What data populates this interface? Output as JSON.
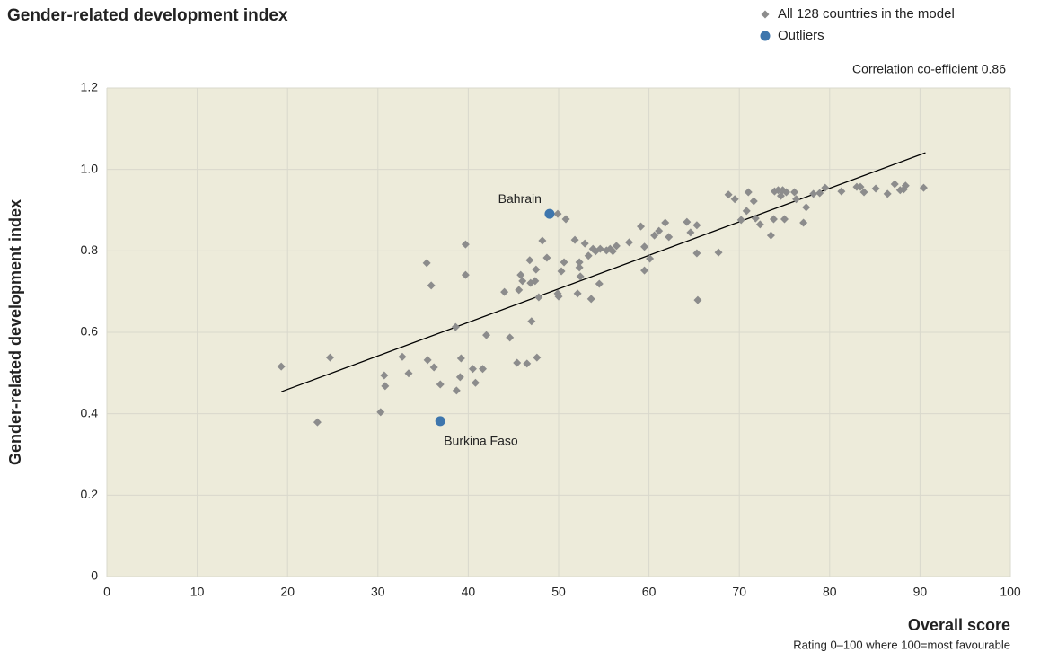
{
  "chart_data": {
    "type": "scatter",
    "title": "Gender-related development index",
    "xlabel": "Overall score",
    "xlabel_note": "Rating 0–100 where 100=most favourable",
    "ylabel": "Gender-related development index",
    "annotation": "Correlation co-efficient 0.86",
    "xlim": [
      0,
      100
    ],
    "ylim": [
      0,
      1.2
    ],
    "xticks": [
      0,
      10,
      20,
      30,
      40,
      50,
      60,
      70,
      80,
      90,
      100
    ],
    "yticks": [
      0,
      0.2,
      0.4,
      0.6,
      0.8,
      {
        "value": 1.0,
        "label": "1.0"
      },
      1.2
    ],
    "grid": true,
    "background": "#edebda",
    "legend": "top-right",
    "series": [
      {
        "name": "All 128 countries in the model",
        "color": "#8c8c8c",
        "marker": "diamond",
        "x": [
          19.3,
          23.3,
          24.7,
          30.3,
          30.7,
          30.8,
          32.7,
          33.4,
          35.4,
          35.9,
          35.5,
          36.2,
          36.9,
          38.6,
          38.7,
          39.1,
          39.2,
          39.7,
          39.7,
          40.5,
          40.8,
          41.6,
          42.0,
          44.0,
          44.6,
          45.4,
          45.6,
          45.8,
          46.0,
          46.5,
          46.8,
          46.9,
          47.0,
          47.4,
          47.5,
          47.6,
          47.8,
          48.2,
          48.7,
          49.9,
          49.9,
          50.0,
          50.3,
          50.6,
          50.8,
          51.8,
          52.1,
          52.3,
          52.4,
          52.3,
          52.9,
          53.3,
          53.6,
          53.8,
          54.1,
          54.5,
          54.6,
          55.3,
          55.7,
          56.0,
          56.4,
          57.8,
          59.1,
          59.5,
          59.5,
          60.1,
          60.6,
          61.1,
          61.8,
          62.2,
          64.2,
          64.6,
          65.3,
          65.3,
          65.4,
          67.7,
          68.8,
          69.5,
          70.2,
          70.8,
          71.0,
          71.6,
          71.8,
          72.3,
          73.5,
          73.8,
          73.9,
          74.3,
          74.6,
          74.8,
          75.0,
          75.2,
          76.1,
          76.3,
          77.1,
          77.4,
          78.2,
          78.9,
          79.5,
          81.3,
          83.0,
          83.4,
          83.8,
          85.1,
          86.4,
          87.2,
          87.8,
          88.4,
          88.2,
          90.4
        ],
        "values": [
          0.516,
          0.379,
          0.538,
          0.404,
          0.494,
          0.468,
          0.54,
          0.499,
          0.77,
          0.715,
          0.532,
          0.514,
          0.472,
          0.613,
          0.457,
          0.49,
          0.536,
          0.816,
          0.741,
          0.51,
          0.476,
          0.51,
          0.593,
          0.699,
          0.587,
          0.525,
          0.704,
          0.741,
          0.726,
          0.523,
          0.777,
          0.721,
          0.627,
          0.726,
          0.754,
          0.538,
          0.686,
          0.825,
          0.783,
          0.891,
          0.695,
          0.688,
          0.75,
          0.772,
          0.878,
          0.827,
          0.695,
          0.759,
          0.737,
          0.772,
          0.818,
          0.788,
          0.682,
          0.805,
          0.799,
          0.719,
          0.805,
          0.801,
          0.805,
          0.799,
          0.812,
          0.821,
          0.86,
          0.752,
          0.81,
          0.781,
          0.838,
          0.849,
          0.869,
          0.834,
          0.871,
          0.845,
          0.863,
          0.794,
          0.679,
          0.796,
          0.938,
          0.927,
          0.876,
          0.898,
          0.944,
          0.922,
          0.88,
          0.865,
          0.838,
          0.878,
          0.946,
          0.949,
          0.935,
          0.949,
          0.878,
          0.944,
          0.944,
          0.927,
          0.869,
          0.907,
          0.94,
          0.942,
          0.955,
          0.946,
          0.957,
          0.957,
          0.944,
          0.953,
          0.94,
          0.964,
          0.949,
          0.96,
          0.951,
          0.955
        ]
      },
      {
        "name": "Outliers",
        "color": "#3e76ad",
        "marker": "circle",
        "x": [
          49.0,
          36.9
        ],
        "values": [
          0.891,
          0.382
        ],
        "point_labels": [
          "Bahrain",
          "Burkina Faso"
        ]
      }
    ],
    "trendline": {
      "color": "#000000",
      "x": [
        19.3,
        90.6
      ],
      "values": [
        0.454,
        1.041
      ]
    }
  }
}
